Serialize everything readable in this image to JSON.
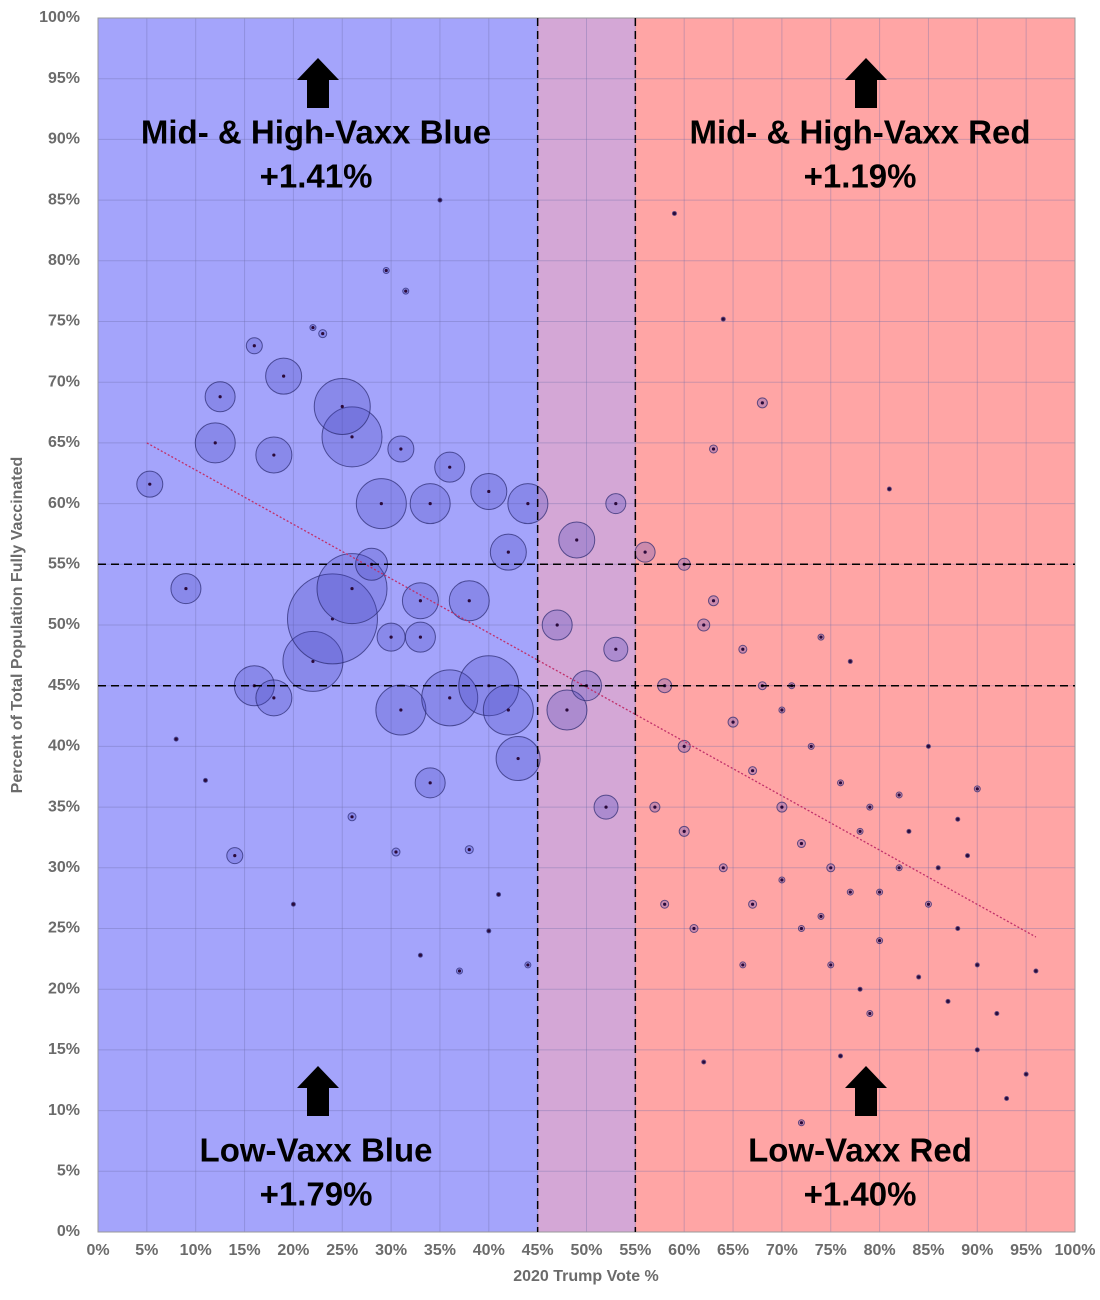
{
  "chart_data": {
    "type": "scatter",
    "x_label": "2020 Trump Vote %",
    "y_label": "Percent of Total Population Fully Vaccinated",
    "xlim": [
      0,
      100
    ],
    "ylim": [
      0,
      100
    ],
    "xticks": [
      {
        "value": 0,
        "label": "0%"
      },
      {
        "value": 5,
        "label": "5%"
      },
      {
        "value": 10,
        "label": "10%"
      },
      {
        "value": 15,
        "label": "15%"
      },
      {
        "value": 20,
        "label": "20%"
      },
      {
        "value": 25,
        "label": "25%"
      },
      {
        "value": 30,
        "label": "30%"
      },
      {
        "value": 35,
        "label": "35%"
      },
      {
        "value": 40,
        "label": "40%"
      },
      {
        "value": 45,
        "label": "45%"
      },
      {
        "value": 50,
        "label": "50%"
      },
      {
        "value": 55,
        "label": "55%"
      },
      {
        "value": 60,
        "label": "60%"
      },
      {
        "value": 65,
        "label": "65%"
      },
      {
        "value": 70,
        "label": "70%"
      },
      {
        "value": 75,
        "label": "75%"
      },
      {
        "value": 80,
        "label": "80%"
      },
      {
        "value": 85,
        "label": "85%"
      },
      {
        "value": 90,
        "label": "90%"
      },
      {
        "value": 95,
        "label": "95%"
      },
      {
        "value": 100,
        "label": "100%"
      }
    ],
    "yticks": [
      {
        "value": 0,
        "label": "0%"
      },
      {
        "value": 5,
        "label": "5%"
      },
      {
        "value": 10,
        "label": "10%"
      },
      {
        "value": 15,
        "label": "15%"
      },
      {
        "value": 20,
        "label": "20%"
      },
      {
        "value": 25,
        "label": "25%"
      },
      {
        "value": 30,
        "label": "30%"
      },
      {
        "value": 35,
        "label": "35%"
      },
      {
        "value": 40,
        "label": "40%"
      },
      {
        "value": 45,
        "label": "45%"
      },
      {
        "value": 50,
        "label": "50%"
      },
      {
        "value": 55,
        "label": "55%"
      },
      {
        "value": 60,
        "label": "60%"
      },
      {
        "value": 65,
        "label": "65%"
      },
      {
        "value": 70,
        "label": "70%"
      },
      {
        "value": 75,
        "label": "75%"
      },
      {
        "value": 80,
        "label": "80%"
      },
      {
        "value": 85,
        "label": "85%"
      },
      {
        "value": 90,
        "label": "90%"
      },
      {
        "value": 95,
        "label": "95%"
      },
      {
        "value": 100,
        "label": "100%"
      }
    ],
    "grid": true,
    "reference_lines": {
      "x": [
        45,
        55
      ],
      "y": [
        45,
        55
      ]
    },
    "region_colors": [
      "#a4a4fb",
      "#d4a7d6",
      "#ffa5a5"
    ],
    "point_fill": "rgba(70,70,190,0.28)",
    "point_stroke": "rgba(40,40,110,0.7)",
    "dot_color": "#2a0a3a",
    "trendline": {
      "x": [
        5,
        96
      ],
      "y": [
        65,
        24.3
      ],
      "color": "#c0306a"
    },
    "points": {
      "x": [
        22,
        24,
        26,
        26,
        25,
        19,
        12,
        18,
        12.5,
        9,
        16,
        18,
        14,
        16,
        5.3,
        31,
        36,
        40,
        42,
        43,
        29,
        34,
        36,
        40,
        44,
        31,
        28,
        33,
        38,
        42,
        34,
        30,
        33,
        48,
        50,
        47,
        53,
        49,
        53,
        52,
        56,
        58,
        60,
        62,
        65,
        67,
        70,
        72,
        75,
        78,
        80,
        82,
        85,
        88,
        90,
        92,
        95,
        96,
        60,
        63,
        66,
        68,
        70,
        73,
        76,
        79,
        83,
        86,
        89,
        72,
        75,
        78,
        80,
        84,
        87,
        90,
        93,
        68,
        63,
        59,
        64,
        81,
        57,
        60,
        64,
        67,
        70,
        74,
        77,
        82,
        85,
        88,
        90,
        62,
        72,
        76,
        66,
        79,
        58,
        61,
        71,
        74,
        77,
        35,
        29.5,
        31.5,
        22,
        23,
        37,
        44,
        8,
        11,
        20,
        26,
        30.5,
        38,
        33,
        41,
        40
      ],
      "y": [
        47,
        50.5,
        53,
        65.5,
        68,
        70.5,
        65,
        64,
        68.8,
        53,
        45,
        44,
        31,
        73,
        61.6,
        43,
        44,
        45,
        43,
        39,
        60,
        60,
        63,
        61,
        60,
        64.5,
        55,
        52,
        52,
        56,
        37,
        49,
        49,
        43,
        45,
        50,
        48,
        57,
        60,
        35,
        56,
        45,
        40,
        50,
        42,
        38,
        35,
        32,
        30,
        33,
        28,
        30,
        27,
        25,
        22,
        18,
        13,
        21.5,
        55,
        52,
        48,
        45,
        43,
        40,
        37,
        35,
        33,
        30,
        31,
        25,
        22,
        20,
        24,
        21,
        19,
        15,
        11,
        68.3,
        64.5,
        83.9,
        75.2,
        61.2,
        35,
        33,
        30,
        27,
        29,
        26,
        28,
        36,
        40,
        34,
        36.5,
        14,
        9,
        14.5,
        22,
        18,
        27,
        25,
        45,
        49,
        47,
        85,
        79.2,
        77.5,
        74.5,
        74,
        21.5,
        22,
        40.6,
        37.2,
        27,
        34.2,
        31.3,
        31.5,
        22.8,
        27.8,
        24.8
      ],
      "sizes": [
        900,
        2025,
        1225,
        900,
        784,
        324,
        400,
        324,
        225,
        225,
        400,
        324,
        64,
        64,
        169,
        625,
        784,
        900,
        625,
        484,
        625,
        400,
        225,
        324,
        400,
        169,
        256,
        324,
        400,
        324,
        225,
        196,
        225,
        400,
        225,
        225,
        144,
        324,
        100,
        144,
        100,
        49,
        36,
        36,
        25,
        16,
        25,
        16,
        16,
        9,
        9,
        9,
        9,
        4,
        4,
        4,
        4,
        4,
        36,
        25,
        16,
        16,
        9,
        9,
        9,
        9,
        4,
        4,
        4,
        9,
        9,
        4,
        9,
        4,
        4,
        4,
        4,
        25,
        16,
        4,
        4,
        4,
        25,
        25,
        16,
        16,
        9,
        9,
        9,
        9,
        4,
        4,
        9,
        4,
        9,
        4,
        9,
        9,
        16,
        16,
        9,
        9,
        4,
        4,
        9,
        9,
        9,
        16,
        9,
        9,
        4,
        4,
        4,
        16,
        16,
        16,
        4,
        4,
        4
      ]
    },
    "annotations": [
      {
        "title": "Mid- & High-Vaxx Blue",
        "change": "+1.41%"
      },
      {
        "title": "Mid- & High-Vaxx Red",
        "change": "+1.19%"
      },
      {
        "title": "Low-Vaxx Blue",
        "change": "+1.79%"
      },
      {
        "title": "Low-Vaxx Red",
        "change": "+1.40%"
      }
    ]
  }
}
